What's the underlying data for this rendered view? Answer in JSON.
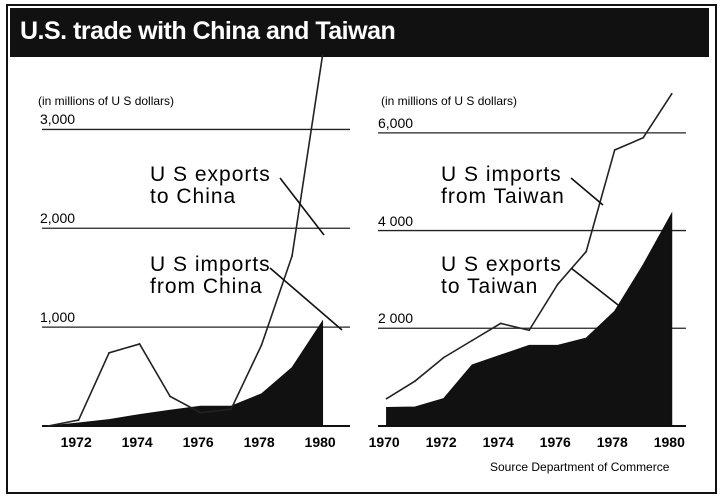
{
  "title": "U.S. trade with China and Taiwan",
  "source": "Source Department of Commerce",
  "colors": {
    "export_line": "#222222",
    "import_fill": "#111111",
    "background": "#ffffff"
  },
  "chart_data": [
    {
      "type": "area",
      "unit_label": "(in millions of U S dollars)",
      "ylim": [
        0,
        3500
      ],
      "yticks": [
        {
          "value": 1000,
          "label": "1,000"
        },
        {
          "value": 2000,
          "label": "2,000"
        },
        {
          "value": 3000,
          "label": "3,000"
        }
      ],
      "xlim": [
        1970.8,
        1980.9
      ],
      "xticks": [
        {
          "value": 1972,
          "label": "1972"
        },
        {
          "value": 1974,
          "label": "1974"
        },
        {
          "value": 1976,
          "label": "1976"
        },
        {
          "value": 1978,
          "label": "1978"
        },
        {
          "value": 1980,
          "label": "1980"
        }
      ],
      "series": [
        {
          "name": "U S exports to China",
          "style": "line",
          "x": [
            1971,
            1972,
            1973,
            1974,
            1975,
            1976,
            1977,
            1978,
            1979,
            1980
          ],
          "values": [
            0,
            60,
            740,
            830,
            300,
            135,
            170,
            820,
            1720,
            3750
          ]
        },
        {
          "name": "U S imports from China",
          "style": "filled",
          "x": [
            1971,
            1972,
            1973,
            1974,
            1975,
            1976,
            1977,
            1978,
            1979,
            1980
          ],
          "values": [
            0,
            30,
            65,
            115,
            160,
            200,
            200,
            325,
            590,
            1060
          ]
        }
      ],
      "annotations": [
        {
          "text": [
            "U S  exports",
            "to China"
          ],
          "target_series": 0
        },
        {
          "text": [
            "U S  imports",
            "from China"
          ],
          "target_series": 1
        }
      ]
    },
    {
      "type": "area",
      "unit_label": "(in millions of U S  dollars)",
      "ylim": [
        0,
        7000
      ],
      "yticks": [
        {
          "value": 2000,
          "label": "2 000"
        },
        {
          "value": 4000,
          "label": "4 000"
        },
        {
          "value": 6000,
          "label": "6,000"
        }
      ],
      "xlim": [
        1969.7,
        1980.5
      ],
      "xticks": [
        {
          "value": 1970,
          "label": "1970"
        },
        {
          "value": 1972,
          "label": "1972"
        },
        {
          "value": 1974,
          "label": "1974"
        },
        {
          "value": 1976,
          "label": "1976"
        },
        {
          "value": 1978,
          "label": "1978"
        },
        {
          "value": 1980,
          "label": "1980"
        }
      ],
      "series": [
        {
          "name": "U S imports from Taiwan",
          "style": "line",
          "x": [
            1970,
            1971,
            1972,
            1973,
            1974,
            1975,
            1976,
            1977,
            1978,
            1979,
            1980
          ],
          "values": [
            560,
            920,
            1400,
            1750,
            2100,
            1960,
            2900,
            3570,
            5650,
            5900,
            6800
          ]
        },
        {
          "name": "U S exports to Taiwan",
          "style": "filled",
          "x": [
            1970,
            1971,
            1972,
            1973,
            1974,
            1975,
            1976,
            1977,
            1978,
            1979,
            1980
          ],
          "values": [
            380,
            390,
            560,
            1250,
            1450,
            1650,
            1650,
            1800,
            2350,
            3300,
            4350
          ]
        }
      ],
      "annotations": [
        {
          "text": [
            "U S  imports",
            "from Taiwan"
          ],
          "target_series": 0
        },
        {
          "text": [
            "U S  exports",
            "to Taiwan"
          ],
          "target_series": 1
        }
      ]
    }
  ]
}
